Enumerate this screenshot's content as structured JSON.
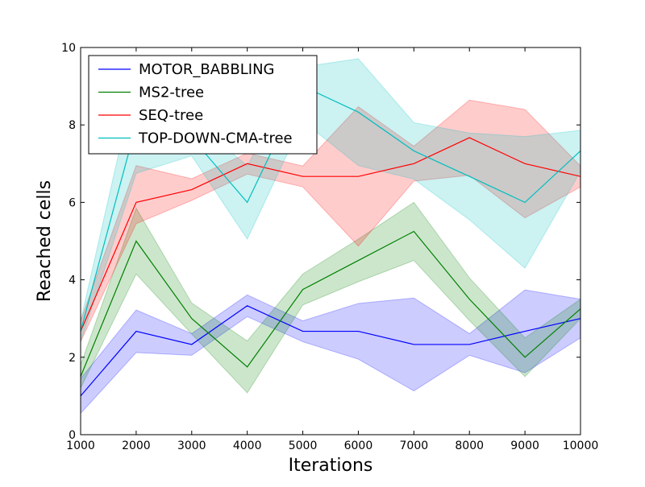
{
  "chart_data": {
    "type": "line",
    "xlabel": "Iterations",
    "ylabel": "Reached cells",
    "xlim": [
      1000,
      10000
    ],
    "ylim": [
      0,
      10
    ],
    "x_ticks": [
      1000,
      2000,
      3000,
      4000,
      5000,
      6000,
      7000,
      8000,
      9000,
      10000
    ],
    "y_ticks": [
      0,
      2,
      4,
      6,
      8,
      10
    ],
    "legend_position": "top-left",
    "grid": false,
    "x": [
      1000,
      2000,
      3000,
      4000,
      5000,
      6000,
      7000,
      8000,
      9000,
      10000
    ],
    "series": [
      {
        "name": "MOTOR_BABBLING",
        "color": "#0000ff",
        "values": [
          1.0,
          2.67,
          2.33,
          3.33,
          2.67,
          2.67,
          2.33,
          2.33,
          2.67,
          3.0
        ],
        "lower": [
          0.55,
          2.12,
          2.05,
          3.05,
          2.4,
          1.95,
          1.13,
          2.05,
          1.6,
          2.5
        ],
        "upper": [
          1.45,
          3.22,
          2.61,
          3.61,
          2.94,
          3.39,
          3.53,
          2.61,
          3.74,
          3.5
        ]
      },
      {
        "name": "MS2-tree",
        "color": "#008000",
        "values": [
          1.5,
          5.0,
          3.0,
          1.75,
          3.75,
          4.5,
          5.25,
          3.5,
          2.0,
          3.25
        ],
        "lower": [
          1.2,
          4.15,
          2.6,
          1.08,
          3.35,
          3.95,
          4.5,
          2.95,
          1.5,
          3.0
        ],
        "upper": [
          1.8,
          5.85,
          3.4,
          2.42,
          4.15,
          5.05,
          6.0,
          4.05,
          2.5,
          3.5
        ]
      },
      {
        "name": "SEQ-tree",
        "color": "#ff0000",
        "values": [
          2.67,
          6.0,
          6.33,
          7.0,
          6.67,
          6.67,
          7.0,
          7.67,
          7.0,
          6.67
        ],
        "lower": [
          2.4,
          5.45,
          6.05,
          6.73,
          6.4,
          4.87,
          6.55,
          6.7,
          5.6,
          6.4
        ],
        "upper": [
          2.94,
          6.95,
          6.61,
          7.27,
          6.94,
          8.47,
          7.45,
          8.64,
          8.4,
          6.94
        ]
      },
      {
        "name": "TOP-DOWN-CMA-tree",
        "color": "#00bfbf",
        "values": [
          2.67,
          8.0,
          7.67,
          6.0,
          9.0,
          8.33,
          7.33,
          6.67,
          6.0,
          7.33
        ],
        "lower": [
          2.4,
          6.75,
          7.2,
          5.05,
          8.1,
          6.95,
          6.6,
          5.55,
          4.3,
          6.8
        ],
        "upper": [
          2.94,
          9.25,
          8.14,
          6.95,
          9.5,
          9.71,
          8.06,
          7.79,
          7.7,
          7.86
        ]
      }
    ]
  }
}
